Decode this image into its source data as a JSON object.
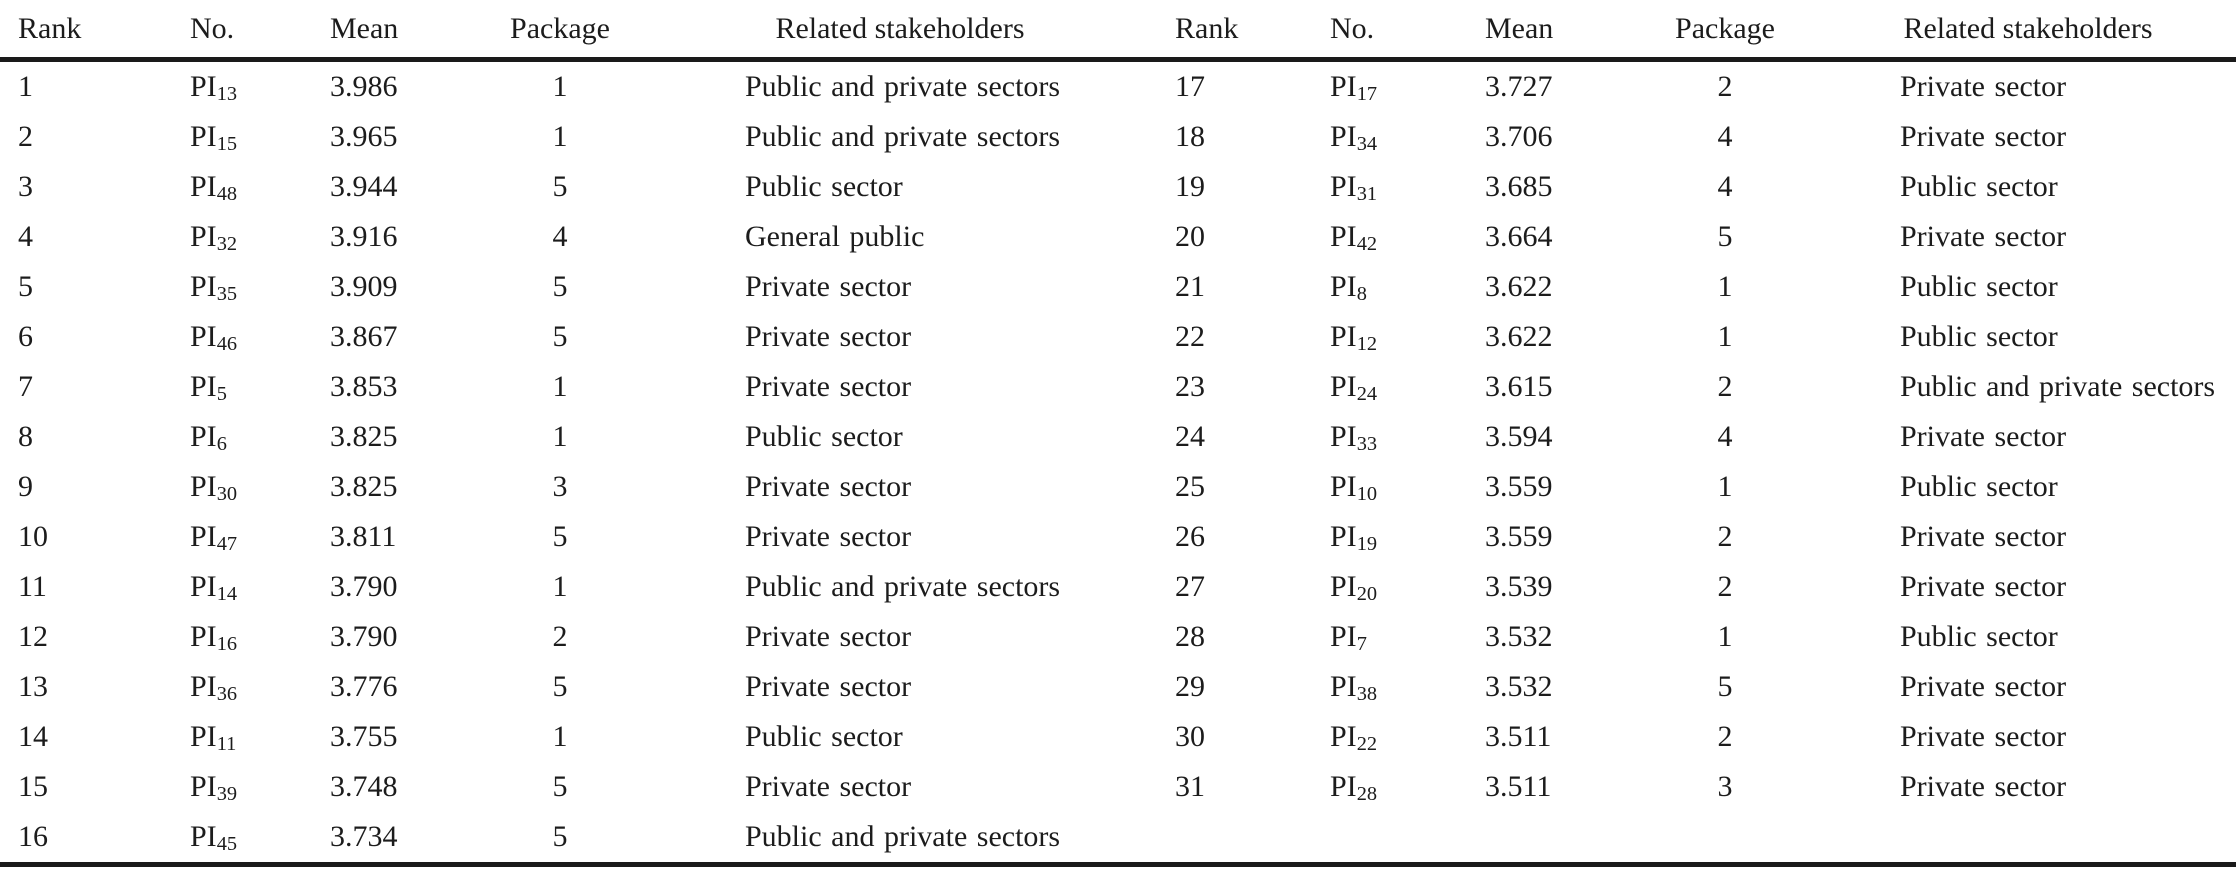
{
  "table": {
    "columns": [
      "Rank",
      "No.",
      "Mean",
      "Package",
      "Related stakeholders"
    ],
    "rows_left": [
      {
        "rank": "1",
        "pi": "PI",
        "pi_sub": "13",
        "mean": "3.986",
        "package": "1",
        "stakeholders": "Public and private sectors"
      },
      {
        "rank": "2",
        "pi": "PI",
        "pi_sub": "15",
        "mean": "3.965",
        "package": "1",
        "stakeholders": "Public and private sectors"
      },
      {
        "rank": "3",
        "pi": "PI",
        "pi_sub": "48",
        "mean": "3.944",
        "package": "5",
        "stakeholders": "Public sector"
      },
      {
        "rank": "4",
        "pi": "PI",
        "pi_sub": "32",
        "mean": "3.916",
        "package": "4",
        "stakeholders": "General public"
      },
      {
        "rank": "5",
        "pi": "PI",
        "pi_sub": "35",
        "mean": "3.909",
        "package": "5",
        "stakeholders": "Private sector"
      },
      {
        "rank": "6",
        "pi": "PI",
        "pi_sub": "46",
        "mean": "3.867",
        "package": "5",
        "stakeholders": "Private sector"
      },
      {
        "rank": "7",
        "pi": "PI",
        "pi_sub": "5",
        "mean": "3.853",
        "package": "1",
        "stakeholders": "Private sector"
      },
      {
        "rank": "8",
        "pi": "PI",
        "pi_sub": "6",
        "mean": "3.825",
        "package": "1",
        "stakeholders": "Public sector"
      },
      {
        "rank": "9",
        "pi": "PI",
        "pi_sub": "30",
        "mean": "3.825",
        "package": "3",
        "stakeholders": "Private sector"
      },
      {
        "rank": "10",
        "pi": "PI",
        "pi_sub": "47",
        "mean": "3.811",
        "package": "5",
        "stakeholders": "Private sector"
      },
      {
        "rank": "11",
        "pi": "PI",
        "pi_sub": "14",
        "mean": "3.790",
        "package": "1",
        "stakeholders": "Public and private sectors"
      },
      {
        "rank": "12",
        "pi": "PI",
        "pi_sub": "16",
        "mean": "3.790",
        "package": "2",
        "stakeholders": "Private sector"
      },
      {
        "rank": "13",
        "pi": "PI",
        "pi_sub": "36",
        "mean": "3.776",
        "package": "5",
        "stakeholders": "Private sector"
      },
      {
        "rank": "14",
        "pi": "PI",
        "pi_sub": "11",
        "mean": "3.755",
        "package": "1",
        "stakeholders": "Public sector"
      },
      {
        "rank": "15",
        "pi": "PI",
        "pi_sub": "39",
        "mean": "3.748",
        "package": "5",
        "stakeholders": "Private sector"
      },
      {
        "rank": "16",
        "pi": "PI",
        "pi_sub": "45",
        "mean": "3.734",
        "package": "5",
        "stakeholders": "Public and private sectors"
      }
    ],
    "rows_right": [
      {
        "rank": "17",
        "pi": "PI",
        "pi_sub": "17",
        "mean": "3.727",
        "package": "2",
        "stakeholders": "Private sector"
      },
      {
        "rank": "18",
        "pi": "PI",
        "pi_sub": "34",
        "mean": "3.706",
        "package": "4",
        "stakeholders": "Private sector"
      },
      {
        "rank": "19",
        "pi": "PI",
        "pi_sub": "31",
        "mean": "3.685",
        "package": "4",
        "stakeholders": "Public sector"
      },
      {
        "rank": "20",
        "pi": "PI",
        "pi_sub": "42",
        "mean": "3.664",
        "package": "5",
        "stakeholders": "Private sector"
      },
      {
        "rank": "21",
        "pi": "PI",
        "pi_sub": "8",
        "mean": "3.622",
        "package": "1",
        "stakeholders": "Public sector"
      },
      {
        "rank": "22",
        "pi": "PI",
        "pi_sub": "12",
        "mean": "3.622",
        "package": "1",
        "stakeholders": "Public sector"
      },
      {
        "rank": "23",
        "pi": "PI",
        "pi_sub": "24",
        "mean": "3.615",
        "package": "2",
        "stakeholders": "Public and private sectors"
      },
      {
        "rank": "24",
        "pi": "PI",
        "pi_sub": "33",
        "mean": "3.594",
        "package": "4",
        "stakeholders": "Private sector"
      },
      {
        "rank": "25",
        "pi": "PI",
        "pi_sub": "10",
        "mean": "3.559",
        "package": "1",
        "stakeholders": "Public sector"
      },
      {
        "rank": "26",
        "pi": "PI",
        "pi_sub": "19",
        "mean": "3.559",
        "package": "2",
        "stakeholders": "Private sector"
      },
      {
        "rank": "27",
        "pi": "PI",
        "pi_sub": "20",
        "mean": "3.539",
        "package": "2",
        "stakeholders": "Private sector"
      },
      {
        "rank": "28",
        "pi": "PI",
        "pi_sub": "7",
        "mean": "3.532",
        "package": "1",
        "stakeholders": "Public sector"
      },
      {
        "rank": "29",
        "pi": "PI",
        "pi_sub": "38",
        "mean": "3.532",
        "package": "5",
        "stakeholders": "Private sector"
      },
      {
        "rank": "30",
        "pi": "PI",
        "pi_sub": "22",
        "mean": "3.511",
        "package": "2",
        "stakeholders": "Private sector"
      },
      {
        "rank": "31",
        "pi": "PI",
        "pi_sub": "28",
        "mean": "3.511",
        "package": "3",
        "stakeholders": "Private sector"
      }
    ]
  }
}
